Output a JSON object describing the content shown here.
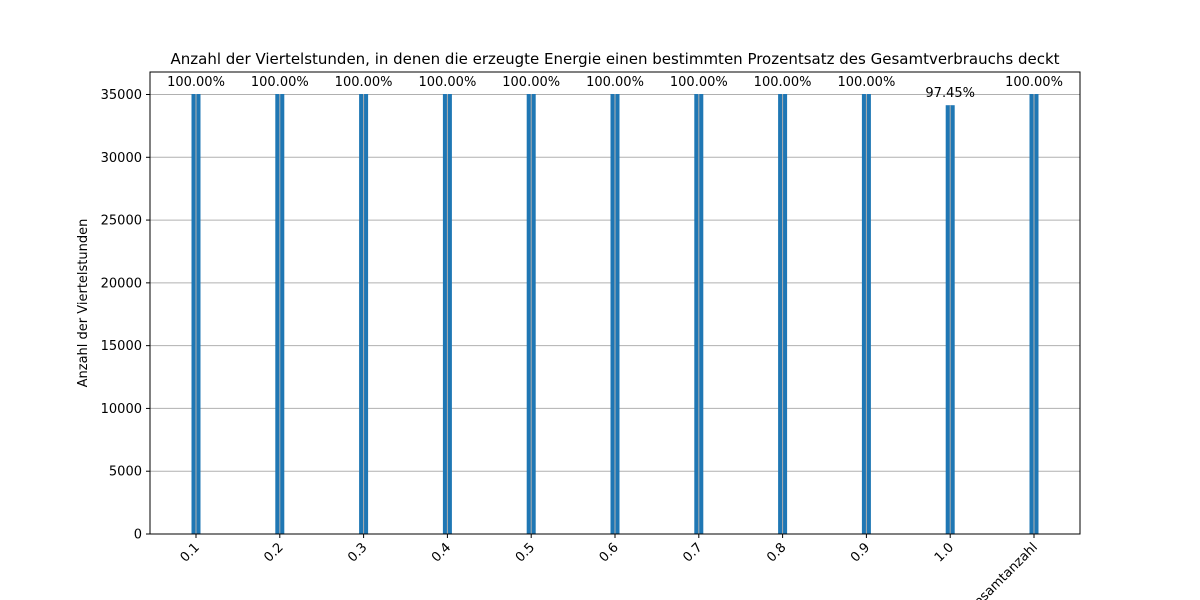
{
  "chart_data": {
    "type": "bar",
    "title": "Anzahl der Viertelstunden, in denen die erzeugte Energie einen bestimmten Prozentsatz des Gesamtverbrauchs deckt",
    "xlabel": "",
    "ylabel": "Anzahl der Viertelstunden",
    "categories": [
      "0.1",
      "0.2",
      "0.3",
      "0.4",
      "0.5",
      "0.6",
      "0.7",
      "0.8",
      "0.9",
      "1.0",
      "Gesamtanzahl"
    ],
    "values": [
      35040,
      35040,
      35040,
      35040,
      35040,
      35040,
      35040,
      35040,
      35040,
      34148,
      35040
    ],
    "data_labels": [
      "100.00%",
      "100.00%",
      "100.00%",
      "100.00%",
      "100.00%",
      "100.00%",
      "100.00%",
      "100.00%",
      "100.00%",
      "97.45%",
      "100.00%"
    ],
    "ylim": [
      0,
      36792
    ],
    "yticks": [
      0,
      5000,
      10000,
      15000,
      20000,
      25000,
      30000,
      35000
    ],
    "ytick_labels": [
      "0",
      "5000",
      "10000",
      "15000",
      "20000",
      "25000",
      "30000",
      "35000"
    ],
    "grid": "y",
    "bar_color": "#1f77b4",
    "legend": "none"
  }
}
